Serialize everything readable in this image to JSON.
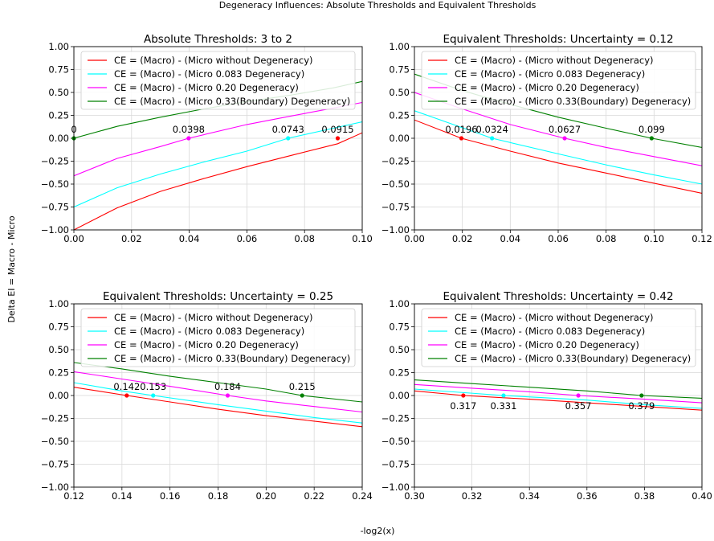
{
  "figure": {
    "suptitle": "Degeneracy Influences: Absolute Thresholds and Equivalent Thresholds",
    "xlabel": "-log2(x)",
    "ylabel": "Delta EI = Macro - Micro"
  },
  "colors": {
    "no_degeneracy": "#ff0000",
    "micro_083": "#00ffff",
    "micro_020": "#ff00ff",
    "micro_033": "#008000"
  },
  "chart_data": [
    {
      "type": "line",
      "title": "Absolute Thresholds: 3 to 2",
      "xlim": [
        0.0,
        0.1
      ],
      "ylim": [
        -1.0,
        1.0
      ],
      "xticks": [
        "0.00",
        "0.02",
        "0.04",
        "0.06",
        "0.08",
        "0.10"
      ],
      "yticks": [
        "−1.00",
        "−0.75",
        "−0.50",
        "−0.25",
        "0.00",
        "0.25",
        "0.50",
        "0.75",
        "1.00"
      ],
      "grid": true,
      "legend_position": "upper left",
      "series": [
        {
          "name": "CE = (Macro) - (Micro without Degeneracy)",
          "color": "#ff0000",
          "x": [
            0.0,
            0.015,
            0.03,
            0.045,
            0.06,
            0.075,
            0.0915,
            0.1
          ],
          "y": [
            -1.0,
            -0.76,
            -0.58,
            -0.44,
            -0.31,
            -0.19,
            -0.06,
            0.06
          ]
        },
        {
          "name": "CE = (Macro) - (Micro 0.083 Degeneracy)",
          "color": "#00ffff",
          "x": [
            0.0,
            0.015,
            0.03,
            0.045,
            0.06,
            0.0743,
            0.09,
            0.1
          ],
          "y": [
            -0.75,
            -0.54,
            -0.39,
            -0.26,
            -0.14,
            0.0,
            0.11,
            0.18
          ]
        },
        {
          "name": "CE = (Macro) - (Micro 0.20 Degeneracy)",
          "color": "#ff00ff",
          "x": [
            0.0,
            0.015,
            0.03,
            0.0398,
            0.06,
            0.075,
            0.09,
            0.1
          ],
          "y": [
            -0.41,
            -0.22,
            -0.09,
            0.0,
            0.15,
            0.24,
            0.33,
            0.39
          ]
        },
        {
          "name": "CE = (Macro) - (Micro 0.33(Boundary) Degeneracy)",
          "color": "#008000",
          "x": [
            0.0,
            0.015,
            0.03,
            0.045,
            0.06,
            0.075,
            0.09,
            0.1
          ],
          "y": [
            0.0,
            0.13,
            0.23,
            0.32,
            0.4,
            0.47,
            0.55,
            0.62
          ]
        }
      ],
      "annotations": [
        {
          "text": "0",
          "x": 0.0,
          "y": 0.0,
          "color": "#008000"
        },
        {
          "text": "0.0398",
          "x": 0.0398,
          "y": 0.0,
          "color": "#ff00ff"
        },
        {
          "text": "0.0743",
          "x": 0.0743,
          "y": 0.0,
          "color": "#00ffff"
        },
        {
          "text": "0.0915",
          "x": 0.0915,
          "y": 0.0,
          "color": "#ff0000"
        }
      ],
      "annotation_side": "above"
    },
    {
      "type": "line",
      "title": "Equivalent Thresholds: Uncertainty = 0.12",
      "xlim": [
        0.0,
        0.12
      ],
      "ylim": [
        -1.0,
        1.0
      ],
      "xticks": [
        "0.00",
        "0.02",
        "0.04",
        "0.06",
        "0.08",
        "0.10",
        "0.12"
      ],
      "yticks": [
        "−1.00",
        "−0.75",
        "−0.50",
        "−0.25",
        "0.00",
        "0.25",
        "0.50",
        "0.75",
        "1.00"
      ],
      "grid": true,
      "legend_position": "upper left",
      "series": [
        {
          "name": "CE = (Macro) - (Micro without Degeneracy)",
          "color": "#ff0000",
          "x": [
            0.0,
            0.0196,
            0.04,
            0.06,
            0.08,
            0.1,
            0.12
          ],
          "y": [
            0.2,
            0.0,
            -0.14,
            -0.27,
            -0.38,
            -0.49,
            -0.6
          ]
        },
        {
          "name": "CE = (Macro) - (Micro 0.083 Degeneracy)",
          "color": "#00ffff",
          "x": [
            0.0,
            0.0324,
            0.06,
            0.08,
            0.1,
            0.12
          ],
          "y": [
            0.3,
            0.0,
            -0.17,
            -0.29,
            -0.4,
            -0.5
          ]
        },
        {
          "name": "CE = (Macro) - (Micro 0.20 Degeneracy)",
          "color": "#ff00ff",
          "x": [
            0.0,
            0.02,
            0.04,
            0.0627,
            0.08,
            0.1,
            0.12
          ],
          "y": [
            0.5,
            0.32,
            0.15,
            0.0,
            -0.1,
            -0.2,
            -0.3
          ]
        },
        {
          "name": "CE = (Macro) - (Micro 0.33(Boundary) Degeneracy)",
          "color": "#008000",
          "x": [
            0.0,
            0.02,
            0.04,
            0.06,
            0.08,
            0.099,
            0.12
          ],
          "y": [
            0.7,
            0.52,
            0.37,
            0.23,
            0.11,
            0.0,
            -0.1
          ]
        }
      ],
      "annotations": [
        {
          "text": "0.0196",
          "x": 0.0196,
          "y": 0.0,
          "color": "#ff0000"
        },
        {
          "text": "0.0324",
          "x": 0.0324,
          "y": 0.0,
          "color": "#00ffff"
        },
        {
          "text": "0.0627",
          "x": 0.0627,
          "y": 0.0,
          "color": "#ff00ff"
        },
        {
          "text": "0.099",
          "x": 0.099,
          "y": 0.0,
          "color": "#008000"
        }
      ],
      "annotation_side": "above"
    },
    {
      "type": "line",
      "title": "Equivalent Thresholds: Uncertainty = 0.25",
      "xlim": [
        0.12,
        0.24
      ],
      "ylim": [
        -1.0,
        1.0
      ],
      "xticks": [
        "0.12",
        "0.14",
        "0.16",
        "0.18",
        "0.20",
        "0.22",
        "0.24"
      ],
      "yticks": [
        "−1.00",
        "−0.75",
        "−0.50",
        "−0.25",
        "0.00",
        "0.25",
        "0.50",
        "0.75",
        "1.00"
      ],
      "grid": true,
      "legend_position": "upper left",
      "series": [
        {
          "name": "CE = (Macro) - (Micro without Degeneracy)",
          "color": "#ff0000",
          "x": [
            0.12,
            0.142,
            0.16,
            0.18,
            0.2,
            0.22,
            0.24
          ],
          "y": [
            0.09,
            0.0,
            -0.07,
            -0.15,
            -0.22,
            -0.28,
            -0.34
          ]
        },
        {
          "name": "CE = (Macro) - (Micro 0.083 Degeneracy)",
          "color": "#00ffff",
          "x": [
            0.12,
            0.14,
            0.153,
            0.18,
            0.2,
            0.22,
            0.24
          ],
          "y": [
            0.14,
            0.05,
            0.0,
            -0.1,
            -0.17,
            -0.24,
            -0.3
          ]
        },
        {
          "name": "CE = (Macro) - (Micro 0.20 Degeneracy)",
          "color": "#ff00ff",
          "x": [
            0.12,
            0.14,
            0.16,
            0.184,
            0.2,
            0.22,
            0.24
          ],
          "y": [
            0.26,
            0.18,
            0.1,
            0.0,
            -0.06,
            -0.12,
            -0.18
          ]
        },
        {
          "name": "CE = (Macro) - (Micro 0.33(Boundary) Degeneracy)",
          "color": "#008000",
          "x": [
            0.12,
            0.14,
            0.16,
            0.18,
            0.2,
            0.215,
            0.24
          ],
          "y": [
            0.36,
            0.29,
            0.21,
            0.14,
            0.07,
            0.0,
            -0.07
          ]
        }
      ],
      "annotations": [
        {
          "text": "0.142",
          "x": 0.142,
          "y": 0.0,
          "color": "#ff0000"
        },
        {
          "text": "0.153",
          "x": 0.153,
          "y": 0.0,
          "color": "#00ffff"
        },
        {
          "text": "0.184",
          "x": 0.184,
          "y": 0.0,
          "color": "#ff00ff"
        },
        {
          "text": "0.215",
          "x": 0.215,
          "y": 0.0,
          "color": "#008000"
        }
      ],
      "annotation_side": "above"
    },
    {
      "type": "line",
      "title": "Equivalent Thresholds: Uncertainty = 0.42",
      "xlim": [
        0.3,
        0.4
      ],
      "ylim": [
        -1.0,
        1.0
      ],
      "xticks": [
        "0.30",
        "0.32",
        "0.34",
        "0.36",
        "0.38",
        "0.40"
      ],
      "yticks": [
        "−1.00",
        "−0.75",
        "−0.50",
        "−0.25",
        "0.00",
        "0.25",
        "0.50",
        "0.75",
        "1.00"
      ],
      "grid": true,
      "legend_position": "upper left",
      "series": [
        {
          "name": "CE = (Macro) - (Micro without Degeneracy)",
          "color": "#ff0000",
          "x": [
            0.3,
            0.317,
            0.34,
            0.36,
            0.38,
            0.4
          ],
          "y": [
            0.05,
            0.0,
            -0.04,
            -0.08,
            -0.12,
            -0.16
          ]
        },
        {
          "name": "CE = (Macro) - (Micro 0.083 Degeneracy)",
          "color": "#00ffff",
          "x": [
            0.3,
            0.331,
            0.36,
            0.38,
            0.4
          ],
          "y": [
            0.07,
            0.0,
            -0.05,
            -0.1,
            -0.14
          ]
        },
        {
          "name": "CE = (Macro) - (Micro 0.20 Degeneracy)",
          "color": "#ff00ff",
          "x": [
            0.3,
            0.32,
            0.34,
            0.357,
            0.38,
            0.4
          ],
          "y": [
            0.12,
            0.08,
            0.04,
            0.0,
            -0.04,
            -0.08
          ]
        },
        {
          "name": "CE = (Macro) - (Micro 0.33(Boundary) Degeneracy)",
          "color": "#008000",
          "x": [
            0.3,
            0.32,
            0.34,
            0.36,
            0.379,
            0.4
          ],
          "y": [
            0.17,
            0.13,
            0.09,
            0.05,
            0.0,
            -0.03
          ]
        }
      ],
      "annotations": [
        {
          "text": "0.317",
          "x": 0.317,
          "y": 0.0,
          "color": "#ff0000"
        },
        {
          "text": "0.331",
          "x": 0.331,
          "y": 0.0,
          "color": "#00ffff"
        },
        {
          "text": "0.357",
          "x": 0.357,
          "y": 0.0,
          "color": "#ff00ff"
        },
        {
          "text": "0.379",
          "x": 0.379,
          "y": 0.0,
          "color": "#008000"
        }
      ],
      "annotation_side": "below"
    }
  ]
}
